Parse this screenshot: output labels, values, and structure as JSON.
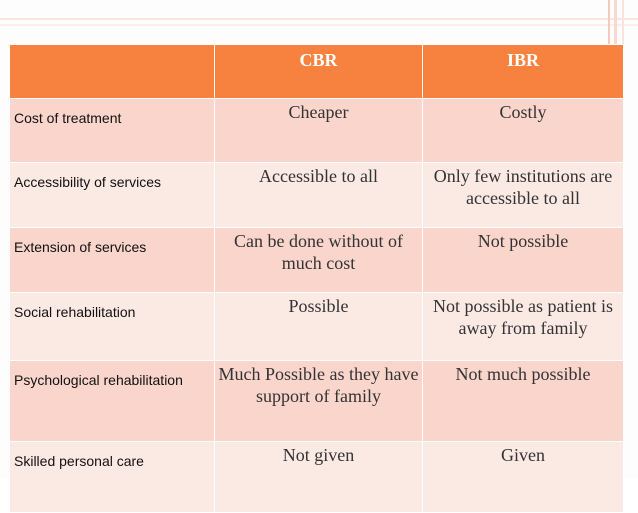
{
  "table": {
    "headers": [
      "",
      "CBR",
      "IBR"
    ],
    "rows": [
      {
        "label": "Cost of treatment",
        "cbr": "Cheaper",
        "ibr": "Costly"
      },
      {
        "label": "Accessibility of services",
        "cbr": "Accessible to all",
        "ibr": "Only few institutions are accessible to all"
      },
      {
        "label": "Extension of services",
        "cbr": "Can be done without of much cost",
        "ibr": "Not possible"
      },
      {
        "label": "Social rehabilitation",
        "cbr": "Possible",
        "ibr": "Not possible as patient is away from family"
      },
      {
        "label": "Psychological rehabilitation",
        "cbr": "Much Possible as they have support of family",
        "ibr": "Not much possible"
      },
      {
        "label": "Skilled personal care",
        "cbr": "Not given",
        "ibr": "Given"
      }
    ]
  },
  "colors": {
    "header_bg": "#f7823f",
    "row_bg_dark": "#f9d5cb",
    "row_bg_light": "#fbe9e4",
    "header_text": "#ffffff"
  }
}
